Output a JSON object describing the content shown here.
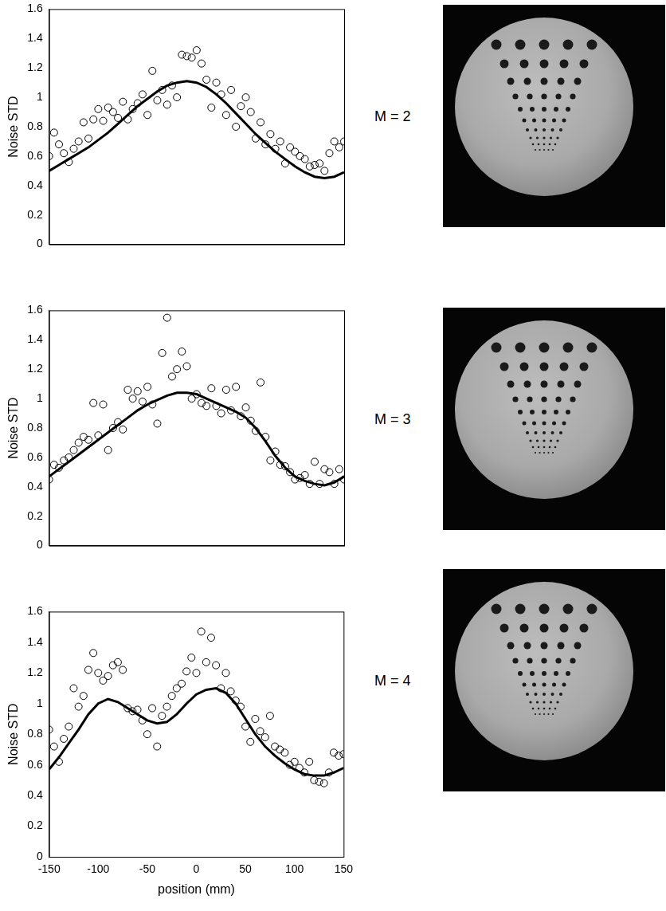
{
  "chart_data": [
    {
      "type": "scatter",
      "y_label": "Noise STD",
      "annotation": "M = 2",
      "xlim": [
        -150,
        150
      ],
      "xticks": [
        -150,
        -100,
        -50,
        0,
        50,
        100,
        150
      ],
      "ylim": [
        0,
        1.6
      ],
      "yticks": [
        0,
        0.2,
        0.4,
        0.6,
        0.8,
        1,
        1.2,
        1.4,
        1.6
      ],
      "grid": false,
      "tick_labels": "y",
      "series": [
        {
          "type": "scatter",
          "marker": "circle",
          "color": "#000000",
          "x": [
            -150,
            -145,
            -140,
            -135,
            -130,
            -125,
            -120,
            -115,
            -110,
            -105,
            -100,
            -95,
            -90,
            -85,
            -80,
            -75,
            -70,
            -65,
            -60,
            -55,
            -50,
            -45,
            -40,
            -35,
            -30,
            -25,
            -20,
            -15,
            -10,
            -5,
            0,
            5,
            10,
            15,
            20,
            25,
            30,
            35,
            40,
            45,
            50,
            55,
            60,
            65,
            70,
            75,
            80,
            85,
            90,
            95,
            100,
            105,
            110,
            115,
            120,
            125,
            130,
            135,
            140,
            145,
            150
          ],
          "values": [
            0.6,
            0.76,
            0.68,
            0.62,
            0.56,
            0.65,
            0.7,
            0.83,
            0.72,
            0.85,
            0.92,
            0.84,
            0.93,
            0.9,
            0.86,
            0.97,
            0.85,
            0.92,
            0.96,
            1.02,
            0.88,
            1.18,
            0.98,
            1.05,
            0.95,
            1.08,
            1.0,
            1.29,
            1.28,
            1.27,
            1.32,
            1.23,
            1.12,
            0.93,
            1.1,
            1.02,
            0.88,
            1.05,
            0.8,
            0.94,
            1.0,
            0.9,
            0.72,
            0.83,
            0.68,
            0.75,
            0.65,
            0.7,
            0.55,
            0.66,
            0.63,
            0.6,
            0.58,
            0.53,
            0.54,
            0.55,
            0.5,
            0.62,
            0.7,
            0.66,
            0.7
          ]
        },
        {
          "type": "line",
          "line_style": "solid",
          "color": "#000000",
          "x": [
            -150,
            -140,
            -130,
            -120,
            -110,
            -100,
            -90,
            -80,
            -70,
            -60,
            -50,
            -40,
            -30,
            -20,
            -10,
            0,
            10,
            20,
            30,
            40,
            50,
            60,
            70,
            80,
            90,
            100,
            110,
            120,
            130,
            140,
            150
          ],
          "values": [
            0.5,
            0.54,
            0.58,
            0.62,
            0.66,
            0.71,
            0.76,
            0.82,
            0.88,
            0.94,
            0.99,
            1.04,
            1.08,
            1.1,
            1.11,
            1.1,
            1.07,
            1.02,
            0.96,
            0.89,
            0.82,
            0.75,
            0.69,
            0.63,
            0.58,
            0.53,
            0.49,
            0.46,
            0.45,
            0.46,
            0.49
          ]
        }
      ]
    },
    {
      "type": "scatter",
      "y_label": "Noise STD",
      "annotation": "M = 3",
      "xlim": [
        -150,
        150
      ],
      "xticks": [
        -150,
        -100,
        -50,
        0,
        50,
        100,
        150
      ],
      "ylim": [
        0,
        1.6
      ],
      "yticks": [
        0,
        0.2,
        0.4,
        0.6,
        0.8,
        1,
        1.2,
        1.4,
        1.6
      ],
      "grid": false,
      "tick_labels": "y",
      "series": [
        {
          "type": "scatter",
          "marker": "circle",
          "color": "#000000",
          "x": [
            -150,
            -145,
            -140,
            -135,
            -130,
            -125,
            -120,
            -115,
            -110,
            -105,
            -100,
            -95,
            -90,
            -85,
            -80,
            -75,
            -70,
            -65,
            -60,
            -55,
            -50,
            -45,
            -40,
            -35,
            -30,
            -25,
            -20,
            -15,
            -10,
            -5,
            0,
            5,
            10,
            15,
            20,
            25,
            30,
            35,
            40,
            45,
            50,
            55,
            60,
            65,
            70,
            75,
            80,
            85,
            90,
            95,
            100,
            105,
            110,
            115,
            120,
            125,
            130,
            135,
            140,
            145,
            150
          ],
          "values": [
            0.45,
            0.55,
            0.53,
            0.58,
            0.6,
            0.65,
            0.7,
            0.74,
            0.72,
            0.97,
            0.75,
            0.96,
            0.65,
            0.8,
            0.84,
            0.79,
            1.06,
            1.0,
            1.05,
            0.98,
            1.08,
            0.96,
            0.83,
            1.31,
            1.55,
            1.15,
            1.2,
            1.32,
            1.22,
            1.0,
            1.03,
            0.97,
            0.95,
            1.07,
            0.95,
            0.9,
            1.06,
            0.92,
            1.08,
            0.88,
            0.94,
            0.85,
            0.78,
            1.11,
            0.74,
            0.58,
            0.64,
            0.55,
            0.54,
            0.5,
            0.45,
            0.46,
            0.48,
            0.42,
            0.57,
            0.42,
            0.52,
            0.5,
            0.42,
            0.52,
            0.45
          ]
        },
        {
          "type": "line",
          "line_style": "solid",
          "color": "#000000",
          "x": [
            -150,
            -140,
            -130,
            -120,
            -110,
            -100,
            -90,
            -80,
            -70,
            -60,
            -50,
            -40,
            -30,
            -20,
            -10,
            0,
            10,
            20,
            30,
            40,
            50,
            60,
            70,
            80,
            90,
            100,
            110,
            120,
            130,
            140,
            150
          ],
          "values": [
            0.47,
            0.52,
            0.57,
            0.62,
            0.67,
            0.72,
            0.77,
            0.82,
            0.87,
            0.92,
            0.96,
            0.99,
            1.02,
            1.04,
            1.04,
            1.03,
            1.0,
            0.97,
            0.94,
            0.91,
            0.87,
            0.8,
            0.71,
            0.61,
            0.53,
            0.47,
            0.44,
            0.42,
            0.41,
            0.43,
            0.47
          ]
        }
      ]
    },
    {
      "type": "scatter",
      "x_label": "position (mm)",
      "y_label": "Noise STD",
      "annotation": "M = 4",
      "xlim": [
        -150,
        150
      ],
      "xticks": [
        -150,
        -100,
        -50,
        0,
        50,
        100,
        150
      ],
      "ylim": [
        0,
        1.6
      ],
      "yticks": [
        0,
        0.2,
        0.4,
        0.6,
        0.8,
        1,
        1.2,
        1.4,
        1.6
      ],
      "grid": false,
      "tick_labels": true,
      "series": [
        {
          "type": "scatter",
          "marker": "circle",
          "color": "#000000",
          "x": [
            -150,
            -145,
            -140,
            -135,
            -130,
            -125,
            -120,
            -115,
            -110,
            -105,
            -100,
            -95,
            -90,
            -85,
            -80,
            -75,
            -70,
            -65,
            -60,
            -55,
            -50,
            -45,
            -40,
            -35,
            -30,
            -25,
            -20,
            -15,
            -10,
            -5,
            0,
            5,
            10,
            15,
            20,
            25,
            30,
            35,
            40,
            45,
            50,
            55,
            60,
            65,
            70,
            75,
            80,
            85,
            90,
            95,
            100,
            105,
            110,
            115,
            120,
            125,
            130,
            135,
            140,
            145,
            150
          ],
          "values": [
            0.83,
            0.72,
            0.62,
            0.77,
            0.85,
            1.1,
            0.98,
            1.05,
            1.22,
            1.33,
            1.2,
            1.15,
            1.18,
            1.25,
            1.27,
            1.22,
            0.97,
            0.95,
            0.96,
            0.89,
            0.8,
            0.97,
            0.72,
            0.92,
            0.98,
            1.05,
            1.1,
            1.13,
            1.21,
            1.3,
            1.2,
            1.47,
            1.27,
            1.43,
            1.25,
            1.1,
            1.2,
            1.08,
            1.02,
            0.98,
            0.85,
            0.75,
            0.9,
            0.82,
            0.78,
            0.92,
            0.72,
            0.7,
            0.68,
            0.6,
            0.62,
            0.58,
            0.55,
            0.62,
            0.5,
            0.49,
            0.48,
            0.55,
            0.68,
            0.66,
            0.67
          ]
        },
        {
          "type": "line",
          "line_style": "solid",
          "color": "#000000",
          "x": [
            -150,
            -140,
            -130,
            -120,
            -110,
            -100,
            -90,
            -80,
            -70,
            -60,
            -50,
            -40,
            -30,
            -20,
            -10,
            0,
            10,
            20,
            30,
            40,
            50,
            60,
            70,
            80,
            90,
            100,
            110,
            120,
            130,
            140,
            150
          ],
          "values": [
            0.57,
            0.65,
            0.74,
            0.83,
            0.93,
            1.0,
            1.03,
            1.01,
            0.97,
            0.93,
            0.89,
            0.87,
            0.88,
            0.93,
            1.0,
            1.06,
            1.09,
            1.1,
            1.07,
            1.0,
            0.9,
            0.8,
            0.72,
            0.66,
            0.61,
            0.57,
            0.54,
            0.53,
            0.53,
            0.55,
            0.58
          ]
        }
      ]
    }
  ]
}
